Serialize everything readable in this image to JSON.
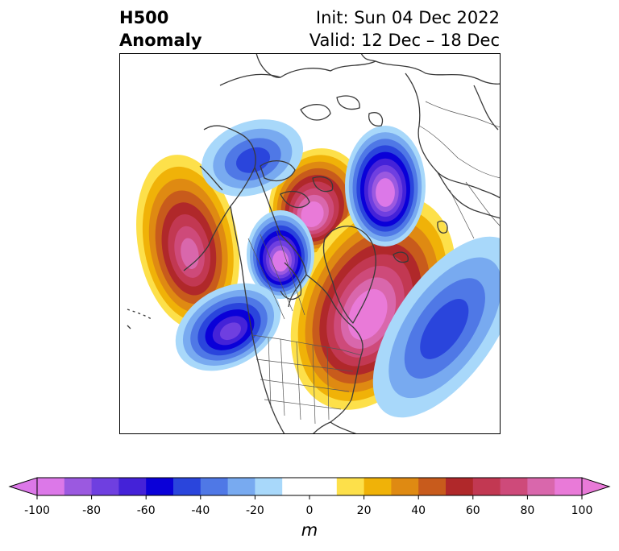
{
  "header": {
    "left_line1": "H500",
    "left_line2": "Anomaly",
    "right_line1": "Init: Sun 04 Dec 2022",
    "right_line2": "Valid: 12 Dec – 18 Dec"
  },
  "colorbar": {
    "unit": "m",
    "ticks": [
      "-100",
      "-80",
      "-60",
      "-40",
      "-20",
      "0",
      "20",
      "40",
      "60",
      "80",
      "100"
    ],
    "colors": [
      "#dc78e8",
      "#9b59e0",
      "#6f3fe0",
      "#4422d8",
      "#0a00d8",
      "#2a45dc",
      "#4f78e6",
      "#78aaf0",
      "#a8d8fa",
      "#ffffff",
      "#ffffff",
      "#fde04a",
      "#f0b208",
      "#df8a12",
      "#c85b1c",
      "#b0282a",
      "#c23852",
      "#ce4a7a",
      "#d967ac",
      "#e97ad8"
    ]
  },
  "map": {
    "region": "Northern Hemisphere polar stereographic (North America / North Atlantic)",
    "anomaly_centers": [
      {
        "id": "ridge-east-pacific",
        "sign": "positive",
        "peak_m": 80
      },
      {
        "id": "ridge-arctic",
        "sign": "positive",
        "peak_m": 100
      },
      {
        "id": "ridge-greenland-canada",
        "sign": "positive",
        "peak_m": 100
      },
      {
        "id": "trough-siberia",
        "sign": "negative",
        "peak_m": -100
      },
      {
        "id": "trough-alaska",
        "sign": "negative",
        "peak_m": -100
      },
      {
        "id": "trough-gulf-of-alaska",
        "sign": "negative",
        "peak_m": -70
      },
      {
        "id": "trough-north-atlantic",
        "sign": "negative",
        "peak_m": -40
      },
      {
        "id": "trough-eastern-asia",
        "sign": "negative",
        "peak_m": -40
      }
    ]
  }
}
